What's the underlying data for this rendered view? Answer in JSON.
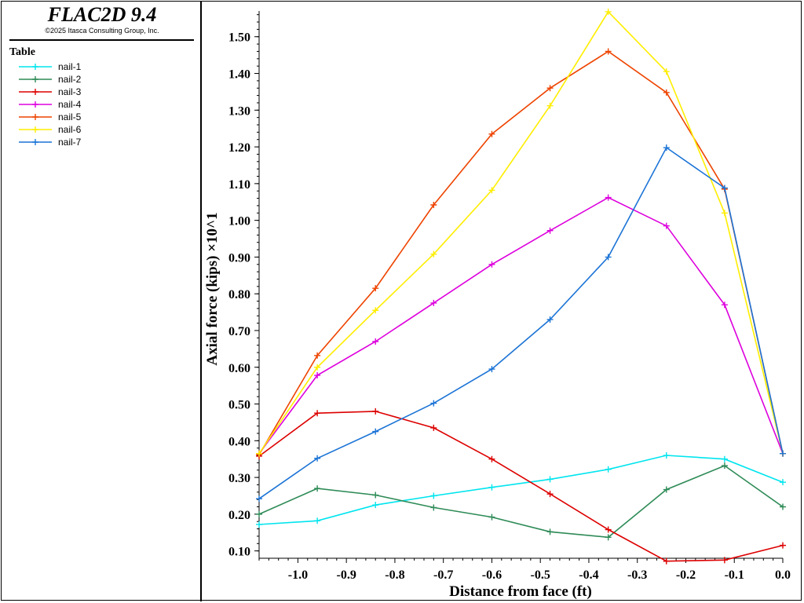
{
  "app": {
    "title": "FLAC2D 9.4",
    "copyright": "©2025 Itasca Consulting Group, Inc."
  },
  "legend": {
    "title": "Table"
  },
  "chart_data": {
    "type": "line",
    "title": "",
    "xlabel": "Distance from face (ft)",
    "ylabel": "Axial force (kips) ×10^1",
    "xlim": [
      -1.08,
      0.0
    ],
    "ylim": [
      0.08,
      1.57
    ],
    "x_ticks": [
      -1.0,
      -0.9,
      -0.8,
      -0.7,
      -0.6,
      -0.5,
      -0.4,
      -0.3,
      -0.2,
      -0.1,
      0.0
    ],
    "y_ticks": [
      0.1,
      0.2,
      0.3,
      0.4,
      0.5,
      0.6,
      0.7,
      0.8,
      0.9,
      1.0,
      1.1,
      1.2,
      1.3,
      1.4,
      1.5
    ],
    "grid": false,
    "legend_position": "left-panel",
    "series": [
      {
        "name": "nail-1",
        "color": "#00e5ee",
        "x": [
          -1.08,
          -0.96,
          -0.84,
          -0.72,
          -0.6,
          -0.48,
          -0.36,
          -0.24,
          -0.12,
          0.0
        ],
        "y": [
          0.172,
          0.182,
          0.225,
          0.25,
          0.273,
          0.295,
          0.322,
          0.36,
          0.35,
          0.287
        ]
      },
      {
        "name": "nail-2",
        "color": "#2e8b57",
        "x": [
          -1.08,
          -0.96,
          -0.84,
          -0.72,
          -0.6,
          -0.48,
          -0.36,
          -0.24,
          -0.12,
          0.0
        ],
        "y": [
          0.2,
          0.27,
          0.252,
          0.218,
          0.192,
          0.152,
          0.137,
          0.267,
          0.332,
          0.22
        ]
      },
      {
        "name": "nail-3",
        "color": "#dd0000",
        "x": [
          -1.08,
          -0.96,
          -0.84,
          -0.72,
          -0.6,
          -0.48,
          -0.36,
          -0.24,
          -0.12,
          0.0
        ],
        "y": [
          0.358,
          0.475,
          0.48,
          0.435,
          0.35,
          0.255,
          0.158,
          0.072,
          0.075,
          0.115
        ]
      },
      {
        "name": "nail-4",
        "color": "#dd00dd",
        "x": [
          -1.08,
          -0.96,
          -0.84,
          -0.72,
          -0.6,
          -0.48,
          -0.36,
          -0.24,
          -0.12,
          0.0
        ],
        "y": [
          0.365,
          0.578,
          0.67,
          0.775,
          0.88,
          0.972,
          1.062,
          0.985,
          0.77,
          0.365
        ]
      },
      {
        "name": "nail-5",
        "color": "#ee4400",
        "x": [
          -1.08,
          -0.96,
          -0.84,
          -0.72,
          -0.6,
          -0.48,
          -0.36,
          -0.24,
          -0.12,
          0.0
        ],
        "y": [
          0.362,
          0.632,
          0.815,
          1.042,
          1.235,
          1.36,
          1.46,
          1.348,
          1.085,
          0.365
        ]
      },
      {
        "name": "nail-6",
        "color": "#ffee00",
        "x": [
          -1.08,
          -0.96,
          -0.84,
          -0.72,
          -0.6,
          -0.48,
          -0.36,
          -0.24,
          -0.12,
          0.0
        ],
        "y": [
          0.365,
          0.6,
          0.755,
          0.908,
          1.082,
          1.312,
          1.568,
          1.405,
          1.02,
          0.365
        ]
      },
      {
        "name": "nail-7",
        "color": "#1c74d6",
        "x": [
          -1.08,
          -0.96,
          -0.84,
          -0.72,
          -0.6,
          -0.48,
          -0.36,
          -0.24,
          -0.12,
          0.0
        ],
        "y": [
          0.242,
          0.352,
          0.425,
          0.502,
          0.595,
          0.73,
          0.9,
          1.198,
          1.088,
          0.365
        ]
      }
    ]
  }
}
